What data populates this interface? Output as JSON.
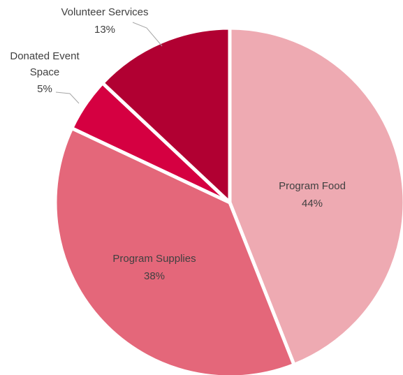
{
  "chart_data": {
    "type": "pie",
    "slices": [
      {
        "label": "Program Food",
        "value": 44,
        "value_label": "44%",
        "color": "#eeaab2"
      },
      {
        "label": "Program Supplies",
        "value": 38,
        "value_label": "38%",
        "color": "#e4677a"
      },
      {
        "label": "Donated Event Space",
        "value": 5,
        "value_label": "5%",
        "color": "#d50041"
      },
      {
        "label": "Volunteer Services",
        "value": 13,
        "value_label": "13%",
        "color": "#b10032"
      }
    ],
    "slice_separator_color": "#ffffff",
    "label_color": "#404040",
    "leader_line_color": "#a6a6a6",
    "legend": "none",
    "labels": {
      "program_food_line1": "Program Food",
      "program_food_line2": "44%",
      "program_supplies_line1": "Program Supplies",
      "program_supplies_line2": "38%",
      "donated_event_space_line1": "Donated Event",
      "donated_event_space_line2": "Space",
      "donated_event_space_line3": "5%",
      "volunteer_services_line1": "Volunteer Services",
      "volunteer_services_line2": "13%"
    }
  }
}
